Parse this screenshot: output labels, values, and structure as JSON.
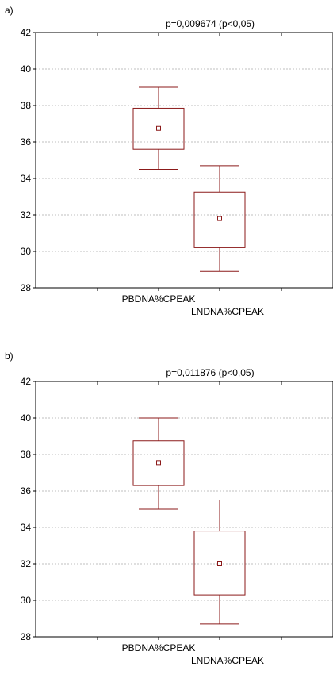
{
  "panels": [
    {
      "label": "a)"
    },
    {
      "label": "b)"
    }
  ],
  "colors": {
    "box": "#8b1a1a",
    "grid": "#bfbfbf",
    "axis": "#000000"
  },
  "chart_data": [
    {
      "type": "box",
      "title": "p=0,009674 (p<0,05)",
      "categories": [
        "PBDNA%CPEAK",
        "LNDNA%CPEAK"
      ],
      "ylim": [
        28,
        42
      ],
      "yticks": [
        28,
        30,
        32,
        34,
        36,
        38,
        40,
        42
      ],
      "grid": true,
      "boxes": [
        {
          "name": "PBDNA%CPEAK",
          "whisker_low": 34.5,
          "q1": 35.6,
          "mean": 36.75,
          "q3": 37.85,
          "whisker_high": 39.0
        },
        {
          "name": "LNDNA%CPEAK",
          "whisker_low": 28.9,
          "q1": 30.2,
          "mean": 31.8,
          "q3": 33.25,
          "whisker_high": 34.7
        }
      ]
    },
    {
      "type": "box",
      "title": "p=0,011876 (p<0,05)",
      "categories": [
        "PBDNA%CPEAK",
        "LNDNA%CPEAK"
      ],
      "ylim": [
        28,
        42
      ],
      "yticks": [
        28,
        30,
        32,
        34,
        36,
        38,
        40,
        42
      ],
      "grid": true,
      "boxes": [
        {
          "name": "PBDNA%CPEAK",
          "whisker_low": 35.0,
          "q1": 36.3,
          "mean": 37.55,
          "q3": 38.75,
          "whisker_high": 40.0
        },
        {
          "name": "LNDNA%CPEAK",
          "whisker_low": 28.7,
          "q1": 30.3,
          "mean": 32.0,
          "q3": 33.8,
          "whisker_high": 35.5
        }
      ]
    }
  ]
}
